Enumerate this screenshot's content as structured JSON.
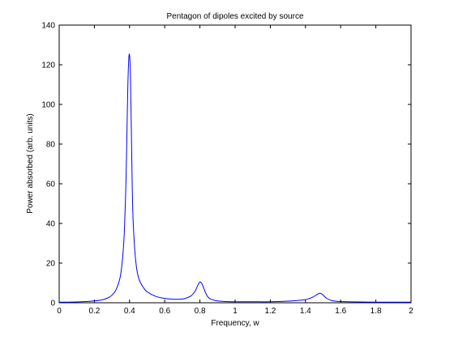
{
  "chart_data": {
    "type": "line",
    "title": "Pentagon of dipoles excited by source",
    "xlabel": "Frequency, w",
    "ylabel": "Power absorbed (arb. units)",
    "xlim": [
      0,
      2
    ],
    "ylim": [
      0,
      140
    ],
    "xticks": [
      0,
      0.2,
      0.4,
      0.6,
      0.8,
      1,
      1.2,
      1.4,
      1.6,
      1.8,
      2
    ],
    "xtick_labels": [
      "0",
      "0.2",
      "0.4",
      "0.6",
      "0.8",
      "1",
      "1.2",
      "1.4",
      "1.6",
      "1.8",
      "2"
    ],
    "yticks": [
      0,
      20,
      40,
      60,
      80,
      100,
      120,
      140
    ],
    "ytick_labels": [
      "0",
      "20",
      "40",
      "60",
      "80",
      "100",
      "120",
      "140"
    ],
    "grid": false,
    "line_color": "#0000ff",
    "series": [
      {
        "x": [
          0,
          0.05,
          0.1,
          0.15,
          0.2,
          0.25,
          0.28,
          0.3,
          0.32,
          0.34,
          0.35,
          0.36,
          0.37,
          0.38,
          0.385,
          0.39,
          0.395,
          0.4,
          0.405,
          0.41,
          0.415,
          0.42,
          0.43,
          0.44,
          0.45,
          0.46,
          0.48,
          0.5,
          0.55,
          0.6,
          0.65,
          0.7,
          0.72,
          0.75,
          0.77,
          0.78,
          0.79,
          0.8,
          0.81,
          0.82,
          0.83,
          0.84,
          0.85,
          0.86,
          0.88,
          0.9,
          0.95,
          1,
          1.1,
          1.2,
          1.3,
          1.35,
          1.4,
          1.42,
          1.44,
          1.46,
          1.47,
          1.48,
          1.49,
          1.5,
          1.51,
          1.52,
          1.54,
          1.56,
          1.6,
          1.7,
          1.8,
          1.9,
          2
        ],
        "values": [
          0.3,
          0.3,
          0.4,
          0.6,
          0.9,
          1.6,
          2.6,
          3.8,
          6,
          10.5,
          14.5,
          22,
          35,
          62,
          85,
          108,
          122,
          125,
          115,
          88,
          60,
          42,
          26,
          17.5,
          13,
          10.5,
          7.5,
          5.5,
          3.2,
          2.2,
          1.8,
          1.9,
          2.3,
          3.5,
          5.5,
          7.2,
          9.2,
          10.5,
          9.8,
          7.8,
          5.5,
          3.6,
          2.5,
          1.9,
          1.3,
          0.9,
          0.6,
          0.5,
          0.5,
          0.5,
          0.8,
          1.1,
          1.6,
          2.1,
          2.8,
          3.8,
          4.4,
          4.8,
          4.6,
          3.9,
          3,
          2.3,
          1.4,
          0.9,
          0.6,
          0.4,
          0.3,
          0.3,
          0.3
        ]
      }
    ]
  }
}
